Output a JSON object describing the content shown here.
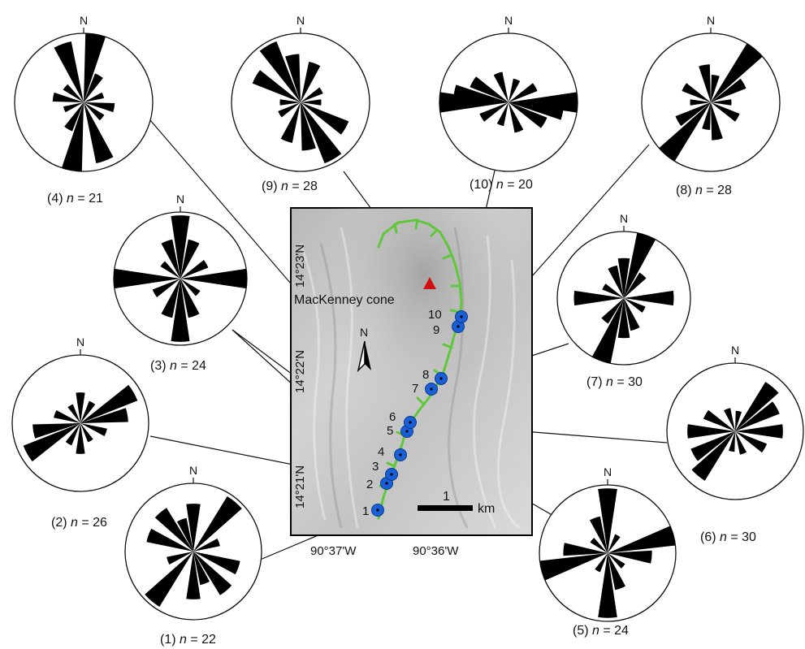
{
  "map": {
    "volcano_label": "MacKenney cone",
    "north_arrow_label": "N",
    "scale_bar": {
      "value": "1",
      "unit": "km"
    },
    "longitude_labels": [
      "90°37'W",
      "90°36'W"
    ],
    "latitude_labels": [
      "14°23'N",
      "14°22'N",
      "14°21'N"
    ]
  },
  "sites": [
    {
      "id": "1",
      "n": "22"
    },
    {
      "id": "2",
      "n": "26"
    },
    {
      "id": "3",
      "n": "24"
    },
    {
      "id": "4",
      "n": "21"
    },
    {
      "id": "5",
      "n": "24"
    },
    {
      "id": "6",
      "n": "30"
    },
    {
      "id": "7",
      "n": "30"
    },
    {
      "id": "8",
      "n": "28"
    },
    {
      "id": "9",
      "n": "28"
    },
    {
      "id": "10",
      "n": "20"
    }
  ],
  "rose_labels": {
    "r1": {
      "site": "(1)",
      "n": "22"
    },
    "r2": {
      "site": "(2)",
      "n": "26"
    },
    "r3": {
      "site": "(3)",
      "n": "24"
    },
    "r4": {
      "site": "(4)",
      "n": "21"
    },
    "r5": {
      "site": "(5)",
      "n": "24"
    },
    "r6": {
      "site": "(6)",
      "n": "30"
    },
    "r7": {
      "site": "(7)",
      "n": "30"
    },
    "r8": {
      "site": "(8)",
      "n": "28"
    },
    "r9": {
      "site": "(9)",
      "n": "28"
    },
    "r10": {
      "site": "(10)",
      "n": "20"
    }
  },
  "rose_north": "N",
  "n_symbol": "n",
  "equals": "=",
  "colors": {
    "site_marker": "#1a5fd6",
    "fissure": "#5fc83a",
    "volcano": "#d01010",
    "petal": "#000000"
  }
}
